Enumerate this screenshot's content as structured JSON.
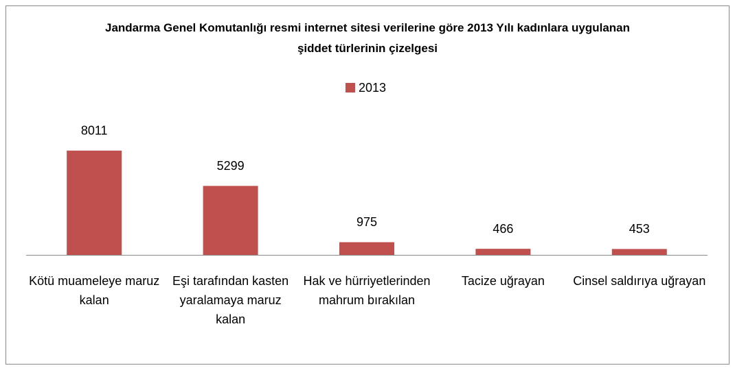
{
  "chart_data": {
    "type": "bar",
    "title": "Jandarma Genel Komutanlığı resmi internet sitesi verilerine göre 2013 Yılı kadınlara uygulanan şiddet türlerinin çizelgesi",
    "categories": [
      "Kötü muameleye maruz kalan",
      "Eşi tarafından kasten yaralamaya maruz kalan",
      "Hak ve hürriyetlerinden mahrum bırakılan",
      "Tacize uğrayan",
      "Cinsel saldırıya uğrayan"
    ],
    "series": [
      {
        "name": "2013",
        "color": "#c0504d",
        "values": [
          8011,
          5299,
          975,
          466,
          453
        ]
      }
    ],
    "ylim": [
      0,
      9000
    ],
    "legend": "top"
  }
}
